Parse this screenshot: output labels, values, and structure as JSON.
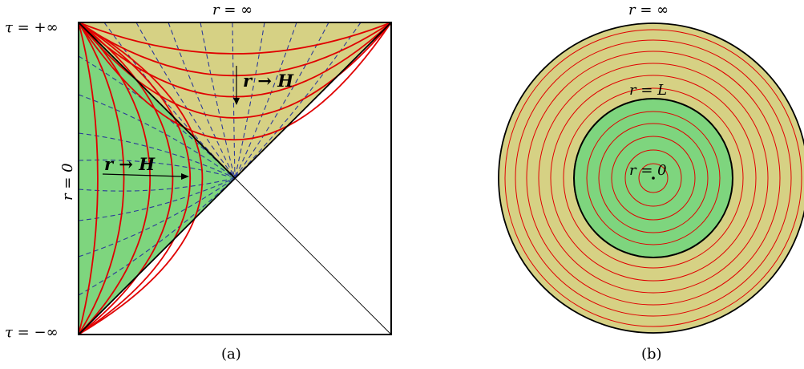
{
  "panel_a": {
    "top_label": "r = ∞",
    "tau_plus": "τ = +∞",
    "tau_minus": "τ = −∞",
    "left_label": "r = 0",
    "arrow_label_upper": "r → H",
    "arrow_label_lower": "r → H",
    "caption": "(a)"
  },
  "panel_b": {
    "top_label": "r = ∞",
    "inner_label": "r = L",
    "center_label": "r = 0",
    "caption": "(b)"
  },
  "colors": {
    "inner_region": "#7ed57e",
    "outer_region": "#d6d184",
    "curves": "#e00000",
    "dashed": "#2b3a9a",
    "frame": "#000000"
  }
}
